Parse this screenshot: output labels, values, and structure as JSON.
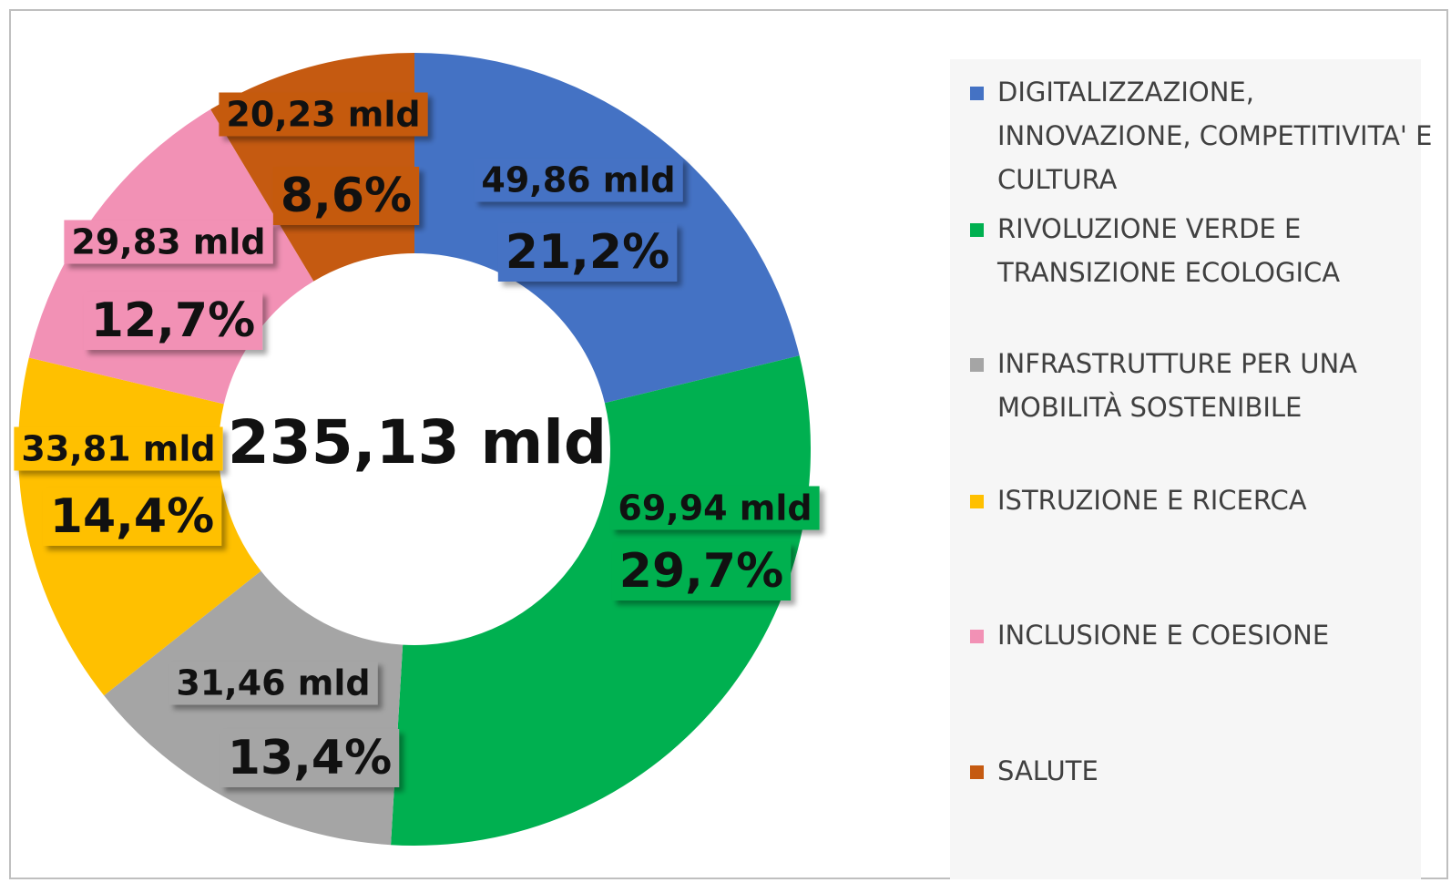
{
  "chart_data": {
    "type": "donut",
    "categories": [
      "DIGITALIZZAZIONE, INNOVAZIONE, COMPETITIVITA' E CULTURA",
      "RIVOLUZIONE VERDE E TRANSIZIONE ECOLOGICA",
      "INFRASTRUTTURE PER UNA MOBILITÀ SOSTENIBILE",
      "ISTRUZIONE E RICERCA",
      "INCLUSIONE E COESIONE",
      "SALUTE"
    ],
    "values": [
      49.86,
      69.94,
      31.46,
      33.81,
      29.83,
      20.23
    ],
    "value_labels": [
      "49,86 mld",
      "69,94 mld",
      "31,46 mld",
      "33,81 mld",
      "29,83 mld",
      "20,23 mld"
    ],
    "percentages": [
      21.2,
      29.7,
      13.4,
      14.4,
      12.7,
      8.6
    ],
    "percentage_labels": [
      "21,2%",
      "29,7%",
      "13,4%",
      "14,4%",
      "12,7%",
      "8,6%"
    ],
    "colors": [
      "#4472c4",
      "#00b050",
      "#a5a5a5",
      "#ffc000",
      "#f291b5",
      "#c55a11"
    ],
    "center_label": "235,13 mld",
    "legend": "right"
  }
}
